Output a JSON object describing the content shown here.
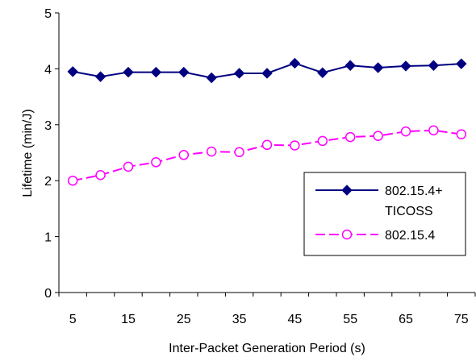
{
  "chart_data": {
    "type": "line",
    "title": "",
    "xlabel": "Inter-Packet Generation Period (s)",
    "ylabel": "Lifetime (min/J)",
    "x": [
      5,
      10,
      15,
      20,
      25,
      30,
      35,
      40,
      45,
      50,
      55,
      60,
      65,
      70,
      75
    ],
    "x_tick_labels": [
      "5",
      "15",
      "25",
      "35",
      "45",
      "55",
      "65",
      "75"
    ],
    "y_tick_labels": [
      "0",
      "1",
      "2",
      "3",
      "4",
      "5"
    ],
    "xlim": [
      2.5,
      77.5
    ],
    "ylim": [
      0,
      5
    ],
    "grid": false,
    "legend_position": "right",
    "series": [
      {
        "name_lines": [
          "802.15.4+",
          "TICOSS"
        ],
        "color": "#000080",
        "marker": "diamond-filled",
        "line_style": "solid",
        "values": [
          3.95,
          3.86,
          3.94,
          3.94,
          3.94,
          3.84,
          3.92,
          3.92,
          4.1,
          3.93,
          4.06,
          4.02,
          4.05,
          4.06,
          4.09
        ]
      },
      {
        "name_lines": [
          "802.15.4"
        ],
        "color": "#ff00ff",
        "marker": "circle-open",
        "line_style": "dashed",
        "values": [
          2.0,
          2.1,
          2.25,
          2.33,
          2.46,
          2.52,
          2.51,
          2.64,
          2.63,
          2.71,
          2.78,
          2.8,
          2.88,
          2.9,
          2.83
        ]
      }
    ]
  }
}
